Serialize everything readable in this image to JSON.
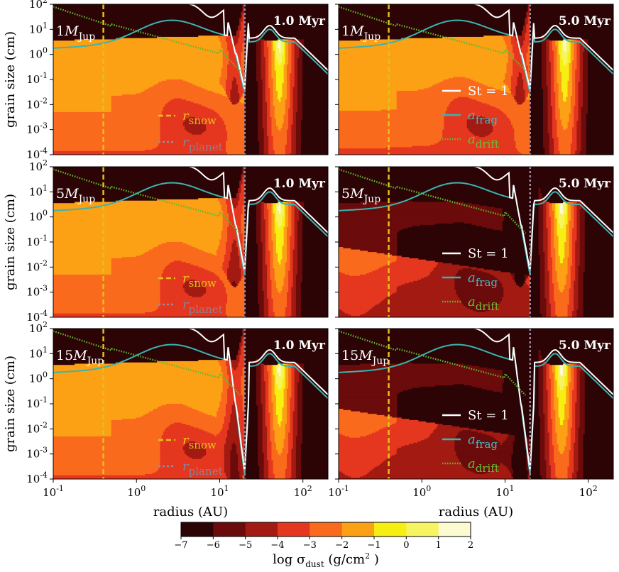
{
  "chart_data": {
    "type": "heatmap",
    "description_layout": "3 rows x 2 columns of log-log contour maps of dust surface density",
    "xlabel": "radius (AU)",
    "ylabel": "grain size (cm)",
    "xscale": "log",
    "yscale": "log",
    "xlim": [
      0.1,
      200
    ],
    "ylim": [
      0.0001,
      100
    ],
    "xticks": [
      0.1,
      1,
      10,
      100
    ],
    "xtick_labels": [
      {
        "base": "10",
        "exp": "-1"
      },
      {
        "base": "10",
        "exp": "0"
      },
      {
        "base": "10",
        "exp": "1"
      },
      {
        "base": "10",
        "exp": "2"
      }
    ],
    "yticks": [
      0.0001,
      0.001,
      0.01,
      0.1,
      1,
      10,
      100
    ],
    "ytick_labels": [
      {
        "base": "10",
        "exp": "-4"
      },
      {
        "base": "10",
        "exp": "-3"
      },
      {
        "base": "10",
        "exp": "-2"
      },
      {
        "base": "10",
        "exp": "-1"
      },
      {
        "base": "10",
        "exp": "0"
      },
      {
        "base": "10",
        "exp": "1"
      },
      {
        "base": "10",
        "exp": "2"
      }
    ],
    "r_snow_au": 0.4,
    "r_planet_au": 20,
    "panels": [
      {
        "mass_num": "1",
        "time": "1.0 Myr",
        "legend": "snow",
        "gap_depth_cm": 0.03,
        "erosion": 0
      },
      {
        "mass_num": "1",
        "time": "5.0 Myr",
        "legend": "curves",
        "gap_depth_cm": 0.03,
        "erosion": 0.05
      },
      {
        "mass_num": "5",
        "time": "1.0 Myr",
        "legend": "snow",
        "gap_depth_cm": 0.005,
        "erosion": 0
      },
      {
        "mass_num": "5",
        "time": "5.0 Myr",
        "legend": "curves",
        "gap_depth_cm": 0.005,
        "erosion": 1.0
      },
      {
        "mass_num": "15",
        "time": "1.0 Myr",
        "legend": "snow",
        "gap_depth_cm": 0.00015,
        "erosion": 0
      },
      {
        "mass_num": "15",
        "time": "5.0 Myr",
        "legend": "curves",
        "gap_depth_cm": 0.00015,
        "erosion": 1.0
      }
    ],
    "mass_sub": "Jup",
    "legend_snow": [
      {
        "sym": "r",
        "sub": "snow"
      },
      {
        "sym": "r",
        "sub": "planet"
      }
    ],
    "legend_curves": [
      {
        "label": "St = 1"
      },
      {
        "sym": "a",
        "sub": "frag"
      },
      {
        "sym": "a",
        "sub": "drift"
      }
    ],
    "colorbar": {
      "label": "log σ",
      "label_sub": "dust",
      "label_unit": " (g/cm",
      "label_unit_sup": "2",
      "label_close": " )",
      "levels": [
        -7,
        -6,
        -5,
        -4,
        -3,
        -2,
        -1,
        0,
        1,
        2
      ],
      "tick_labels": [
        "−7",
        "−6",
        "−5",
        "−4",
        "−3",
        "−2",
        "−1",
        "0",
        "1",
        "2"
      ]
    }
  },
  "colors": {
    "levels": [
      "#2c0405",
      "#6b0b0b",
      "#a21a12",
      "#e5371f",
      "#fa6a1d",
      "#fca015",
      "#f7ee12",
      "#f6f561",
      "#fbfad0"
    ],
    "st1": "#ffffff",
    "afrag": "#3ab4b0",
    "adrift": "#5dbc2c",
    "rsnow": "#e2c218",
    "rplanet": "#9a8aa2",
    "legend_st": "#ffffff",
    "legend_frag": "#4ab8c0",
    "legend_drift": "#6cc03a",
    "legend_snow": "#e8c21c",
    "legend_planet": "#8a8298"
  }
}
